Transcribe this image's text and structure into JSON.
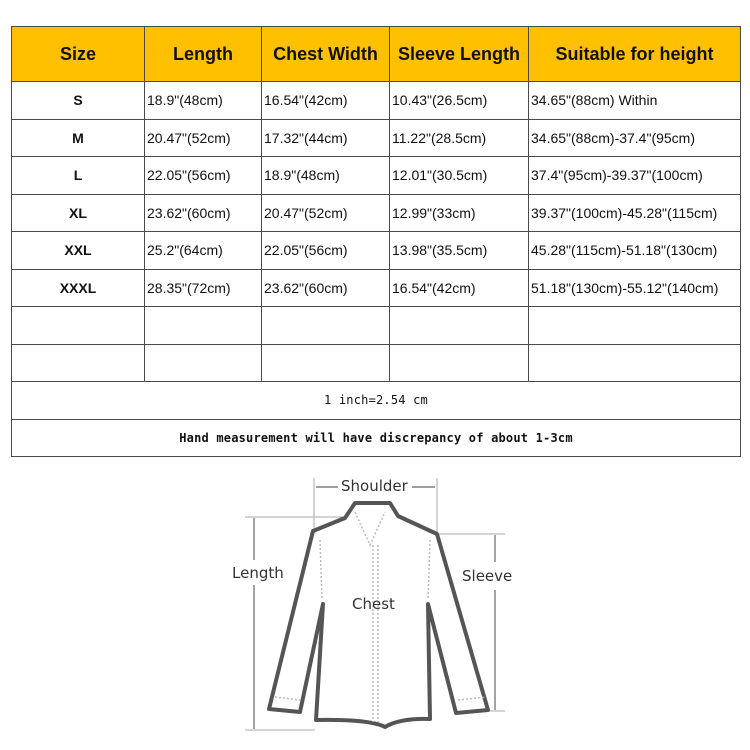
{
  "table": {
    "header_color": "#FFC000",
    "columns": [
      "Size",
      "Length",
      "Chest Width",
      "Sleeve Length",
      "Suitable for height"
    ],
    "rows": [
      [
        "S",
        "18.9\"(48cm)",
        "16.54\"(42cm)",
        "10.43\"(26.5cm)",
        "34.65\"(88cm) Within"
      ],
      [
        "M",
        "20.47\"(52cm)",
        "17.32\"(44cm)",
        "11.22\"(28.5cm)",
        "34.65\"(88cm)-37.4\"(95cm)"
      ],
      [
        "L",
        "22.05\"(56cm)",
        "18.9\"(48cm)",
        "12.01\"(30.5cm)",
        "37.4\"(95cm)-39.37\"(100cm)"
      ],
      [
        "XL",
        "23.62\"(60cm)",
        "20.47\"(52cm)",
        "12.99\"(33cm)",
        "39.37\"(100cm)-45.28\"(115cm)"
      ],
      [
        "XXL",
        "25.2\"(64cm)",
        "22.05\"(56cm)",
        "13.98\"(35.5cm)",
        "45.28\"(115cm)-51.18\"(130cm)"
      ],
      [
        "XXXL",
        "28.35\"(72cm)",
        "23.62\"(60cm)",
        "16.54\"(42cm)",
        "51.18\"(130cm)-55.12\"(140cm)"
      ]
    ],
    "notes": [
      "1 inch=2.54 cm",
      "Hand measurement will have discrepancy of about 1-3cm"
    ]
  },
  "diagram": {
    "shoulder": "Shoulder",
    "length": "Length",
    "sleeve": "Sleeve",
    "chest": "Chest"
  }
}
